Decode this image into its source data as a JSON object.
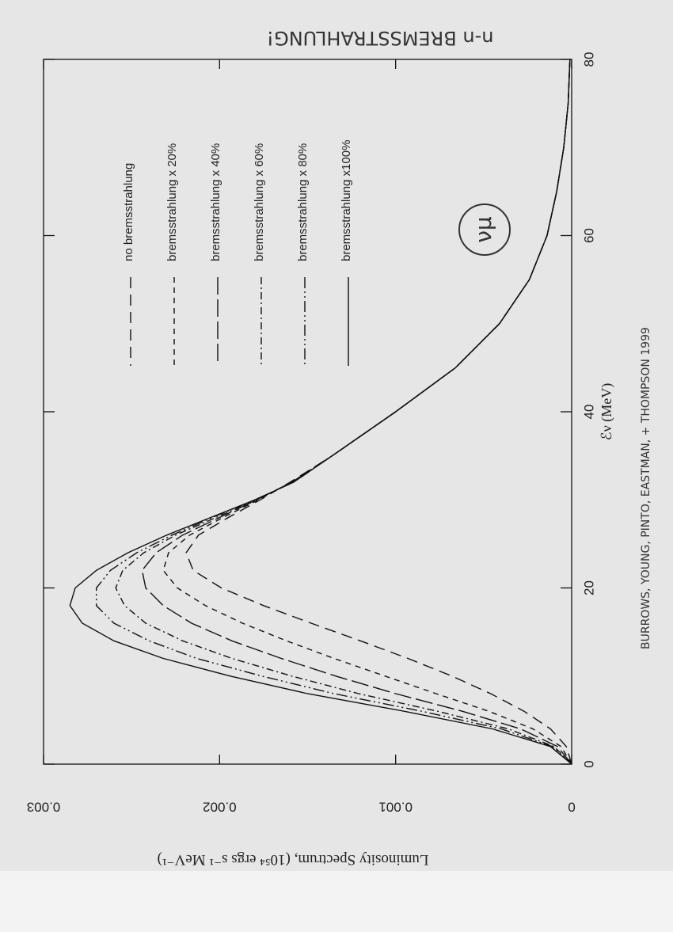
{
  "chart_data": {
    "type": "line",
    "title": "n-n BREMSSTRAHLUNG!",
    "x_label": "ℰν (MeV)",
    "y_label": "Luminosity Spectrum, (10⁵⁴ ergs s⁻¹ MeV⁻¹)",
    "annotations": [
      "νμ",
      "BURROWS, YOUNG, PINTO, EASTMAN, + THOMPSON 1999"
    ],
    "x": [
      0,
      2,
      4,
      6,
      8,
      10,
      12,
      14,
      16,
      18,
      20,
      22,
      24,
      26,
      28,
      30,
      32,
      35,
      40,
      45,
      50,
      55,
      60,
      65,
      70,
      75,
      80
    ],
    "xlim": [
      0,
      80
    ],
    "xticks": [
      0,
      20,
      40,
      60,
      80
    ],
    "ylim": [
      0,
      0.003
    ],
    "yticks": [
      0,
      0.001,
      0.002,
      0.003
    ],
    "series": [
      {
        "name": "no bremsstrahlung",
        "color": "#111111",
        "dash": "14,8",
        "values": [
          0,
          3e-05,
          0.00012,
          0.00027,
          0.00046,
          0.00068,
          0.00093,
          0.0012,
          0.00148,
          0.00175,
          0.00199,
          0.00215,
          0.00219,
          0.00212,
          0.00195,
          0.00177,
          0.0016,
          0.00136,
          0.001,
          0.00066,
          0.00041,
          0.00024,
          0.00014,
          8.5e-05,
          4.5e-05,
          2e-05,
          1e-05
        ]
      },
      {
        "name": "bremsstrahlung x 20%",
        "color": "#111111",
        "dash": "7,6",
        "values": [
          0,
          6e-05,
          0.00022,
          0.00047,
          0.00077,
          0.00106,
          0.00135,
          0.00162,
          0.00187,
          0.00208,
          0.00224,
          0.00232,
          0.00229,
          0.00217,
          0.00198,
          0.00178,
          0.00159,
          0.00136,
          0.001,
          0.00066,
          0.00041,
          0.00024,
          0.00014,
          8.5e-05,
          4.5e-05,
          2e-05,
          1e-05
        ]
      },
      {
        "name": "bremsstrahlung x 40%",
        "color": "#111111",
        "dash": "22,6",
        "values": [
          0,
          8e-05,
          0.00029,
          0.00062,
          0.001,
          0.00134,
          0.00165,
          0.00193,
          0.00216,
          0.00232,
          0.00242,
          0.00244,
          0.00236,
          0.00221,
          0.002,
          0.00179,
          0.00159,
          0.00136,
          0.001,
          0.00066,
          0.00041,
          0.00024,
          0.00014,
          8.5e-05,
          4.5e-05,
          2e-05,
          1e-05
        ]
      },
      {
        "name": "bremsstrahlung x 60%",
        "color": "#111111",
        "dash": "9,4,2,4",
        "values": [
          0,
          0.0001,
          0.00036,
          0.00076,
          0.00121,
          0.00159,
          0.00193,
          0.00221,
          0.00242,
          0.00254,
          0.00259,
          0.00255,
          0.00243,
          0.00225,
          0.00202,
          0.00179,
          0.00159,
          0.00136,
          0.001,
          0.00066,
          0.00041,
          0.00024,
          0.00014,
          8.5e-05,
          4.5e-05,
          2e-05,
          1e-05
        ]
      },
      {
        "name": "bremsstrahlung x 80%",
        "color": "#111111",
        "dash": "14,4,2,4,2,4",
        "values": [
          0,
          0.00011,
          0.0004,
          0.00085,
          0.00135,
          0.00176,
          0.00213,
          0.0024,
          0.0026,
          0.0027,
          0.0027,
          0.00262,
          0.00247,
          0.00227,
          0.00204,
          0.0018,
          0.00158,
          0.00136,
          0.001,
          0.00066,
          0.00041,
          0.00024,
          0.00014,
          8.5e-05,
          4.5e-05,
          2e-05,
          1e-05
        ]
      },
      {
        "name": "bremsstrahlung x100%",
        "color": "#111111",
        "dash": "none",
        "values": [
          0,
          0.00012,
          0.00045,
          0.00095,
          0.0015,
          0.00194,
          0.00232,
          0.0026,
          0.00278,
          0.00285,
          0.00282,
          0.0027,
          0.00252,
          0.0023,
          0.00205,
          0.0018,
          0.00158,
          0.00136,
          0.001,
          0.00066,
          0.00041,
          0.00024,
          0.00014,
          8.5e-05,
          4.5e-05,
          2e-05,
          1e-05
        ]
      }
    ]
  }
}
